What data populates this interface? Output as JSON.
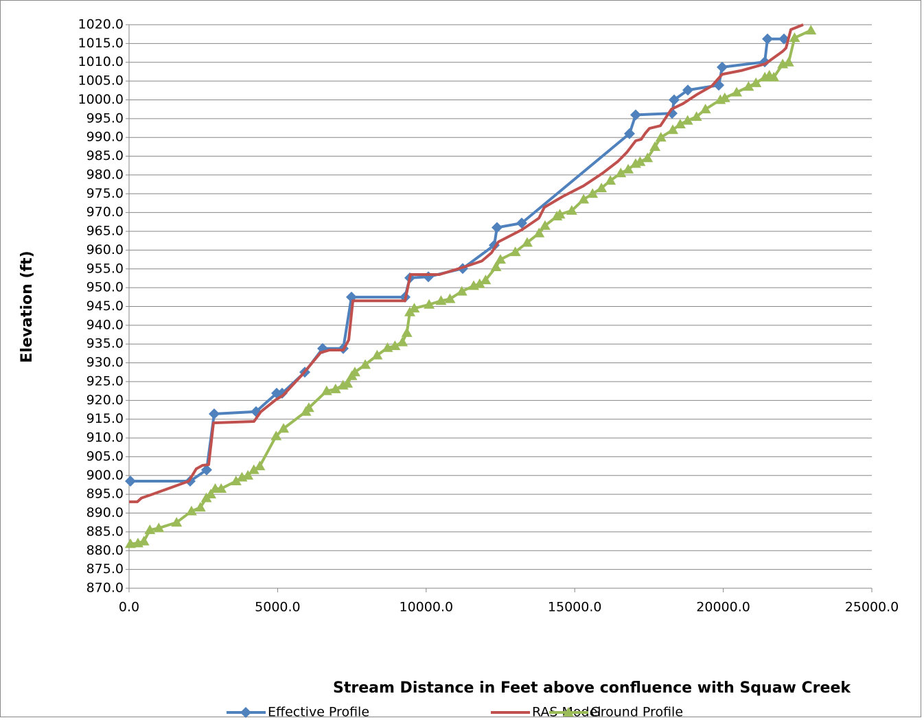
{
  "chart_data": {
    "type": "line",
    "xlabel": "Stream Distance in Feet above confluence with Squaw Creek",
    "ylabel": "Elevation (ft)",
    "xlim": [
      0,
      25000
    ],
    "xticks": [
      {
        "value": 0,
        "label": "0.0"
      },
      {
        "value": 5000,
        "label": "5000.0"
      },
      {
        "value": 10000,
        "label": "10000.0"
      },
      {
        "value": 15000,
        "label": "15000.0"
      },
      {
        "value": 20000,
        "label": "20000.0"
      },
      {
        "value": 25000,
        "label": "25000.0"
      }
    ],
    "ylim": [
      870,
      1020
    ],
    "yticks": [
      {
        "value": 870,
        "label": "870.0"
      },
      {
        "value": 875,
        "label": "875.0"
      },
      {
        "value": 880,
        "label": "880.0"
      },
      {
        "value": 885,
        "label": "885.0"
      },
      {
        "value": 890,
        "label": "890.0"
      },
      {
        "value": 895,
        "label": "895.0"
      },
      {
        "value": 900,
        "label": "900.0"
      },
      {
        "value": 905,
        "label": "905.0"
      },
      {
        "value": 910,
        "label": "910.0"
      },
      {
        "value": 915,
        "label": "915.0"
      },
      {
        "value": 920,
        "label": "920.0"
      },
      {
        "value": 925,
        "label": "925.0"
      },
      {
        "value": 930,
        "label": "930.0"
      },
      {
        "value": 935,
        "label": "935.0"
      },
      {
        "value": 940,
        "label": "940.0"
      },
      {
        "value": 945,
        "label": "945.0"
      },
      {
        "value": 950,
        "label": "950.0"
      },
      {
        "value": 955,
        "label": "955.0"
      },
      {
        "value": 960,
        "label": "960.0"
      },
      {
        "value": 965,
        "label": "965.0"
      },
      {
        "value": 970,
        "label": "970.0"
      },
      {
        "value": 975,
        "label": "975.0"
      },
      {
        "value": 980,
        "label": "980.0"
      },
      {
        "value": 985,
        "label": "985.0"
      },
      {
        "value": 990,
        "label": "990.0"
      },
      {
        "value": 995,
        "label": "995.0"
      },
      {
        "value": 1000,
        "label": "1000.0"
      },
      {
        "value": 1005,
        "label": "1005.0"
      },
      {
        "value": 1010,
        "label": "1010.0"
      },
      {
        "value": 1015,
        "label": "1015.0"
      },
      {
        "value": 1020,
        "label": "1020.0"
      }
    ],
    "grid": true,
    "legend": "bottom",
    "series": [
      {
        "name": "Effective Profile",
        "color": "#4f81bd",
        "marker": "diamond",
        "x": [
          46,
          2056,
          2610,
          2865,
          4275,
          4968,
          5152,
          5915,
          6516,
          7209,
          7486,
          9288,
          9450,
          10074,
          11229,
          12292,
          12384,
          13216,
          16844,
          17052,
          18277,
          18346,
          18808,
          19848,
          19963,
          21396,
          21488,
          22043
        ],
        "values": [
          898.5,
          898.5,
          901.5,
          916.4,
          917,
          921.9,
          921.9,
          927.5,
          933.8,
          933.8,
          947.5,
          947.5,
          952.6,
          952.9,
          955.1,
          961.3,
          966,
          967.2,
          991,
          996,
          996.4,
          1000,
          1002.6,
          1003.9,
          1008.7,
          1010.1,
          1016.2,
          1016.2
        ]
      },
      {
        "name": "RAS Model",
        "color": "#c0504d",
        "x": [
          0,
          277,
          416,
          786,
          2010,
          2264,
          2472,
          2680,
          2842,
          4206,
          4437,
          4946,
          5177,
          5824,
          6447,
          6748,
          7209,
          7394,
          7533,
          9288,
          9473,
          10443,
          11275,
          11876,
          12200,
          12431,
          13216,
          13794,
          13979,
          14603,
          15296,
          15943,
          16451,
          16752,
          17052,
          17237,
          17375,
          17514,
          17884,
          18254,
          18647,
          19109,
          19617,
          19963,
          20610,
          21419,
          21997,
          22112,
          22274,
          22690
        ],
        "values": [
          893,
          893,
          894,
          895,
          898.5,
          901.8,
          902.7,
          902.9,
          914,
          914.4,
          917,
          920.2,
          921.3,
          926.8,
          932.7,
          933.4,
          933.4,
          936.1,
          946.5,
          946.5,
          953.5,
          953.5,
          955.5,
          957.1,
          959.3,
          962.2,
          965.4,
          968.5,
          971.4,
          974.3,
          977.1,
          980.5,
          983.6,
          986,
          989.1,
          989.5,
          991.1,
          992.4,
          993.1,
          997.5,
          999,
          1001.4,
          1003.7,
          1006.8,
          1007.8,
          1009.6,
          1012.9,
          1013.8,
          1018.7,
          1020
        ]
      },
      {
        "name": "Ground Profile",
        "color": "#9bbb59",
        "marker": "triangle",
        "x": [
          46,
          300,
          500,
          700,
          1000,
          1600,
          2100,
          2400,
          2600,
          2750,
          2900,
          3100,
          3600,
          3800,
          4000,
          4200,
          4400,
          4950,
          5200,
          5950,
          6050,
          6650,
          6950,
          7200,
          7350,
          7500,
          7600,
          7950,
          8350,
          8700,
          8950,
          9200,
          9350,
          9450,
          9600,
          10100,
          10500,
          10800,
          11200,
          11600,
          11800,
          12000,
          12350,
          12500,
          13000,
          13400,
          13800,
          14000,
          14400,
          14500,
          14900,
          15300,
          15600,
          15900,
          16200,
          16550,
          16800,
          17050,
          17200,
          17450,
          17700,
          17900,
          18300,
          18550,
          18800,
          19100,
          19400,
          19900,
          20050,
          20450,
          20850,
          21100,
          21400,
          21550,
          21700,
          22000,
          22200,
          22400,
          22950
        ],
        "values": [
          881.8,
          882,
          882.5,
          885.5,
          886,
          887.5,
          890.5,
          891.5,
          894,
          895,
          896.5,
          896.5,
          898.5,
          899.5,
          900,
          901.5,
          902.5,
          910.5,
          912.5,
          917,
          918,
          922.5,
          923,
          924,
          924.5,
          926.5,
          927.5,
          929.5,
          932,
          934,
          934.5,
          935.5,
          938,
          943.5,
          944.5,
          945.5,
          946.5,
          947,
          949,
          950.5,
          951,
          952,
          955.5,
          957.5,
          959.5,
          962,
          964.5,
          966.5,
          969,
          969.5,
          970.5,
          973.5,
          975,
          976.5,
          978.5,
          980.5,
          981.5,
          983,
          983.5,
          984.5,
          987.5,
          990,
          992,
          993.5,
          994.5,
          995.5,
          997.5,
          1000,
          1000.5,
          1002,
          1003.5,
          1004.5,
          1006,
          1006.5,
          1006,
          1009.5,
          1010,
          1016.5,
          1018.5
        ]
      }
    ]
  }
}
